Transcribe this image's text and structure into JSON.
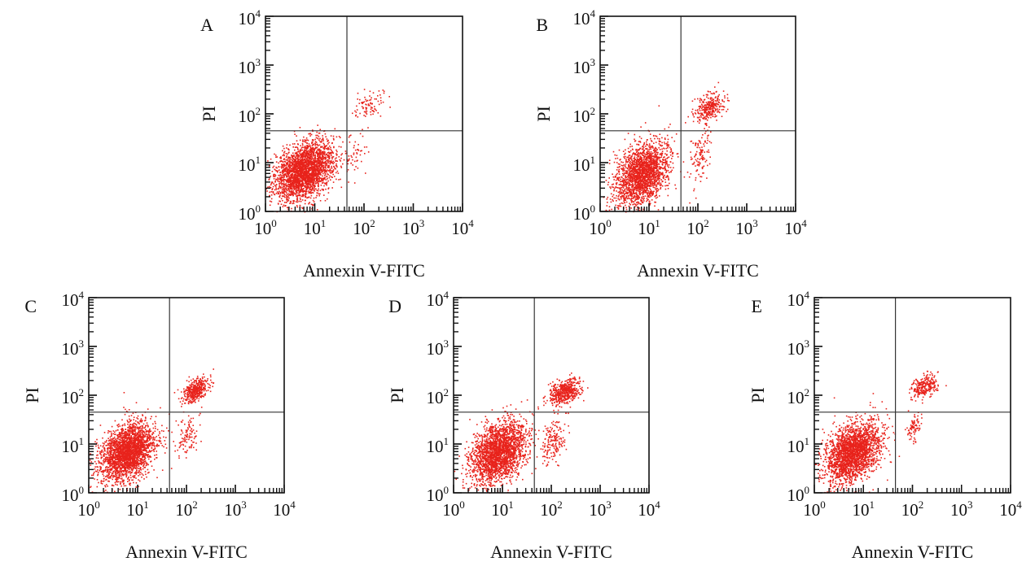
{
  "chart_data": [
    {
      "type": "scatter",
      "panel_label": "A",
      "xlabel": "Annexin V-FITC",
      "ylabel": "PI",
      "xscale": "log",
      "yscale": "log",
      "xlim": [
        1,
        10000
      ],
      "ylim": [
        1,
        10000
      ],
      "x_ticks": [
        1,
        10,
        100,
        1000,
        10000
      ],
      "y_ticks": [
        1,
        10,
        100,
        1000,
        10000
      ],
      "tick_labels": [
        {
          "base": "10",
          "exp": "0"
        },
        {
          "base": "10",
          "exp": "1"
        },
        {
          "base": "10",
          "exp": "2"
        },
        {
          "base": "10",
          "exp": "3"
        },
        {
          "base": "10",
          "exp": "4"
        }
      ],
      "quadrant_gate": {
        "x": 45,
        "y": 45
      },
      "grid": false,
      "point_color": "#e8231c",
      "populations": [
        {
          "center_x": 6,
          "center_y": 7,
          "spread_x": 0.3,
          "spread_y": 0.3,
          "count": 2600
        },
        {
          "center_x": 130,
          "center_y": 150,
          "spread_x": 0.15,
          "spread_y": 0.15,
          "count": 90
        },
        {
          "center_x": 70,
          "center_y": 15,
          "spread_x": 0.12,
          "spread_y": 0.2,
          "count": 50
        }
      ]
    },
    {
      "type": "scatter",
      "panel_label": "B",
      "xlabel": "Annexin V-FITC",
      "ylabel": "PI",
      "xscale": "log",
      "yscale": "log",
      "xlim": [
        1,
        10000
      ],
      "ylim": [
        1,
        10000
      ],
      "x_ticks": [
        1,
        10,
        100,
        1000,
        10000
      ],
      "y_ticks": [
        1,
        10,
        100,
        1000,
        10000
      ],
      "tick_labels": [
        {
          "base": "10",
          "exp": "0"
        },
        {
          "base": "10",
          "exp": "1"
        },
        {
          "base": "10",
          "exp": "2"
        },
        {
          "base": "10",
          "exp": "3"
        },
        {
          "base": "10",
          "exp": "4"
        }
      ],
      "quadrant_gate": {
        "x": 45,
        "y": 45
      },
      "grid": false,
      "point_color": "#e8231c",
      "populations": [
        {
          "center_x": 7,
          "center_y": 6,
          "spread_x": 0.27,
          "spread_y": 0.32,
          "count": 2000
        },
        {
          "center_x": 160,
          "center_y": 140,
          "spread_x": 0.15,
          "spread_y": 0.15,
          "count": 300
        },
        {
          "center_x": 110,
          "center_y": 15,
          "spread_x": 0.1,
          "spread_y": 0.25,
          "count": 120
        }
      ]
    },
    {
      "type": "scatter",
      "panel_label": "C",
      "xlabel": "Annexin V-FITC",
      "ylabel": "PI",
      "xscale": "log",
      "yscale": "log",
      "xlim": [
        1,
        10000
      ],
      "ylim": [
        1,
        10000
      ],
      "x_ticks": [
        1,
        10,
        100,
        1000,
        10000
      ],
      "y_ticks": [
        1,
        10,
        100,
        1000,
        10000
      ],
      "tick_labels": [
        {
          "base": "10",
          "exp": "0"
        },
        {
          "base": "10",
          "exp": "1"
        },
        {
          "base": "10",
          "exp": "2"
        },
        {
          "base": "10",
          "exp": "3"
        },
        {
          "base": "10",
          "exp": "4"
        }
      ],
      "quadrant_gate": {
        "x": 45,
        "y": 45
      },
      "grid": false,
      "point_color": "#e8231c",
      "populations": [
        {
          "center_x": 6,
          "center_y": 7,
          "spread_x": 0.28,
          "spread_y": 0.3,
          "count": 2400
        },
        {
          "center_x": 150,
          "center_y": 130,
          "spread_x": 0.14,
          "spread_y": 0.13,
          "count": 380
        },
        {
          "center_x": 100,
          "center_y": 15,
          "spread_x": 0.12,
          "spread_y": 0.22,
          "count": 110
        }
      ]
    },
    {
      "type": "scatter",
      "panel_label": "D",
      "xlabel": "Annexin V-FITC",
      "ylabel": "PI",
      "xscale": "log",
      "yscale": "log",
      "xlim": [
        1,
        10000
      ],
      "ylim": [
        1,
        10000
      ],
      "x_ticks": [
        1,
        10,
        100,
        1000,
        10000
      ],
      "y_ticks": [
        1,
        10,
        100,
        1000,
        10000
      ],
      "tick_labels": [
        {
          "base": "10",
          "exp": "0"
        },
        {
          "base": "10",
          "exp": "1"
        },
        {
          "base": "10",
          "exp": "2"
        },
        {
          "base": "10",
          "exp": "3"
        },
        {
          "base": "10",
          "exp": "4"
        }
      ],
      "quadrant_gate": {
        "x": 45,
        "y": 45
      },
      "grid": false,
      "point_color": "#e8231c",
      "populations": [
        {
          "center_x": 8,
          "center_y": 7,
          "spread_x": 0.28,
          "spread_y": 0.32,
          "count": 2300
        },
        {
          "center_x": 180,
          "center_y": 120,
          "spread_x": 0.16,
          "spread_y": 0.13,
          "count": 480
        },
        {
          "center_x": 110,
          "center_y": 12,
          "spread_x": 0.13,
          "spread_y": 0.25,
          "count": 170
        }
      ]
    },
    {
      "type": "scatter",
      "panel_label": "E",
      "xlabel": "Annexin V-FITC",
      "ylabel": "PI",
      "xscale": "log",
      "yscale": "log",
      "xlim": [
        1,
        10000
      ],
      "ylim": [
        1,
        10000
      ],
      "x_ticks": [
        1,
        10,
        100,
        1000,
        10000
      ],
      "y_ticks": [
        1,
        10,
        100,
        1000,
        10000
      ],
      "tick_labels": [
        {
          "base": "10",
          "exp": "0"
        },
        {
          "base": "10",
          "exp": "1"
        },
        {
          "base": "10",
          "exp": "2"
        },
        {
          "base": "10",
          "exp": "3"
        },
        {
          "base": "10",
          "exp": "4"
        }
      ],
      "quadrant_gate": {
        "x": 45,
        "y": 45
      },
      "grid": false,
      "point_color": "#e8231c",
      "populations": [
        {
          "center_x": 6,
          "center_y": 7,
          "spread_x": 0.28,
          "spread_y": 0.3,
          "count": 2300
        },
        {
          "center_x": 180,
          "center_y": 160,
          "spread_x": 0.14,
          "spread_y": 0.12,
          "count": 260
        },
        {
          "center_x": 110,
          "center_y": 22,
          "spread_x": 0.08,
          "spread_y": 0.15,
          "count": 80
        }
      ]
    }
  ]
}
